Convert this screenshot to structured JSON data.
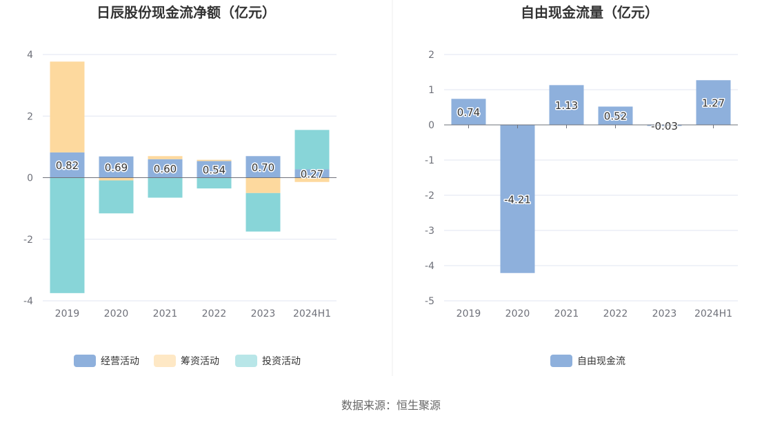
{
  "colors": {
    "operating": "#8eb0dc",
    "financing": "#fdd99e",
    "investing": "#88d5d8",
    "free_cash_flow": "#8eb0dc",
    "grid": "#e0e6f1",
    "axis": "#6e7079",
    "divider": "#eeeeee"
  },
  "source": "数据来源：恒生聚源",
  "chart_data": [
    {
      "type": "bar",
      "stacked": true,
      "title": "日辰股份现金流净额（亿元）",
      "categories": [
        "2019",
        "2020",
        "2021",
        "2022",
        "2023",
        "2024H1"
      ],
      "ylim": [
        -4,
        4
      ],
      "yticks": [
        4,
        2,
        0,
        -2,
        -4
      ],
      "grid": true,
      "legend_position": "bottom",
      "series": [
        {
          "name": "经营活动",
          "color_key": "operating",
          "values": [
            0.82,
            0.69,
            0.6,
            0.54,
            0.7,
            0.27
          ],
          "labels": [
            "0.82",
            "0.69",
            "0.60",
            "0.54",
            "0.70",
            "0.27"
          ]
        },
        {
          "name": "筹资活动",
          "color_key": "financing",
          "values": [
            2.95,
            -0.09,
            0.1,
            0.04,
            -0.5,
            -0.14
          ]
        },
        {
          "name": "投资活动",
          "color_key": "investing",
          "values": [
            -3.75,
            -1.07,
            -0.65,
            -0.35,
            -1.25,
            1.28
          ]
        }
      ]
    },
    {
      "type": "bar",
      "title": "自由现金流量（亿元）",
      "categories": [
        "2019",
        "2020",
        "2021",
        "2022",
        "2023",
        "2024H1"
      ],
      "ylim": [
        -5,
        2
      ],
      "yticks": [
        2,
        1,
        0,
        -1,
        -2,
        -3,
        -4,
        -5
      ],
      "grid": true,
      "legend_position": "bottom",
      "series": [
        {
          "name": "自由现金流",
          "color_key": "free_cash_flow",
          "values": [
            0.74,
            -4.21,
            1.13,
            0.52,
            -0.03,
            1.27
          ],
          "labels": [
            "0.74",
            "-4.21",
            "1.13",
            "0.52",
            "-0.03",
            "1.27"
          ]
        }
      ]
    }
  ]
}
